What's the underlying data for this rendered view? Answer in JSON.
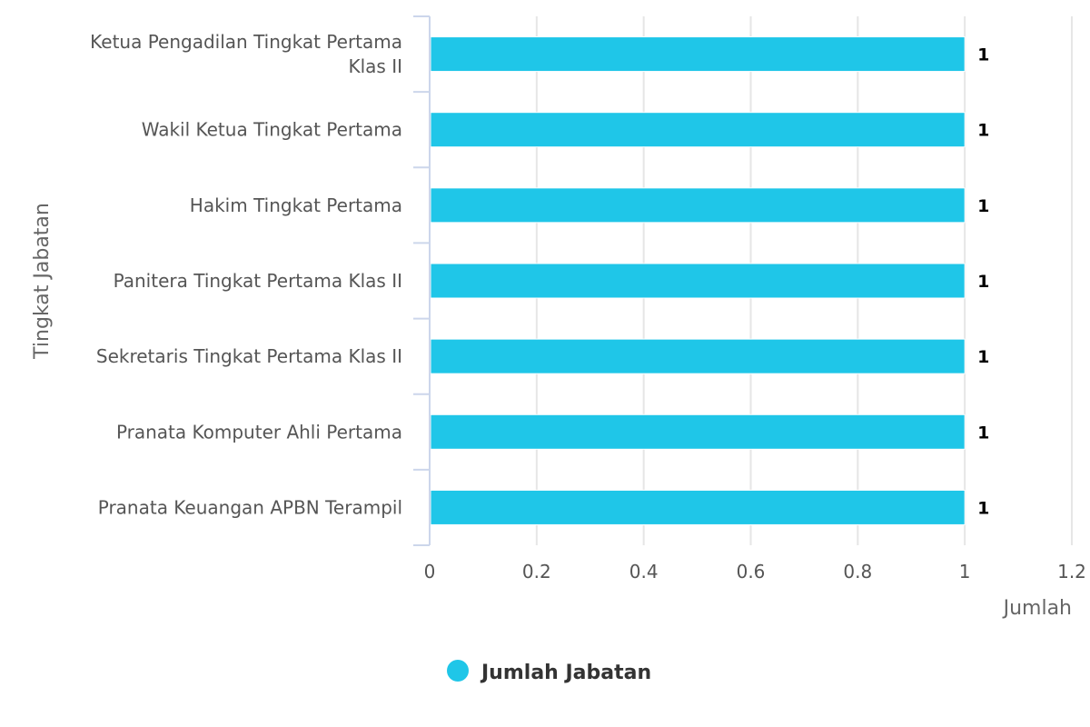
{
  "chart_data": {
    "type": "bar",
    "orientation": "horizontal",
    "categories": [
      [
        "Ketua Pengadilan Tingkat Pertama",
        "Klas II"
      ],
      [
        "Wakil Ketua Tingkat Pertama"
      ],
      [
        "Hakim Tingkat Pertama"
      ],
      [
        "Panitera Tingkat Pertama Klas II"
      ],
      [
        "Sekretaris Tingkat Pertama Klas II"
      ],
      [
        "Pranata Komputer Ahli Pertama"
      ],
      [
        "Pranata Keuangan APBN Terampil"
      ]
    ],
    "series": [
      {
        "name": "Jumlah Jabatan",
        "values": [
          1,
          1,
          1,
          1,
          1,
          1,
          1
        ],
        "color": "#1fc6e8"
      }
    ],
    "xlabel": "Jumlah",
    "ylabel": "Tingkat Jabatan",
    "xlim": [
      0,
      1.2
    ],
    "xticks": [
      "0",
      "0.2",
      "0.4",
      "0.6",
      "0.8",
      "1",
      "1.2"
    ],
    "grid": true,
    "data_labels": true,
    "legend": {
      "position": "bottom-center",
      "marker": "circle"
    }
  }
}
